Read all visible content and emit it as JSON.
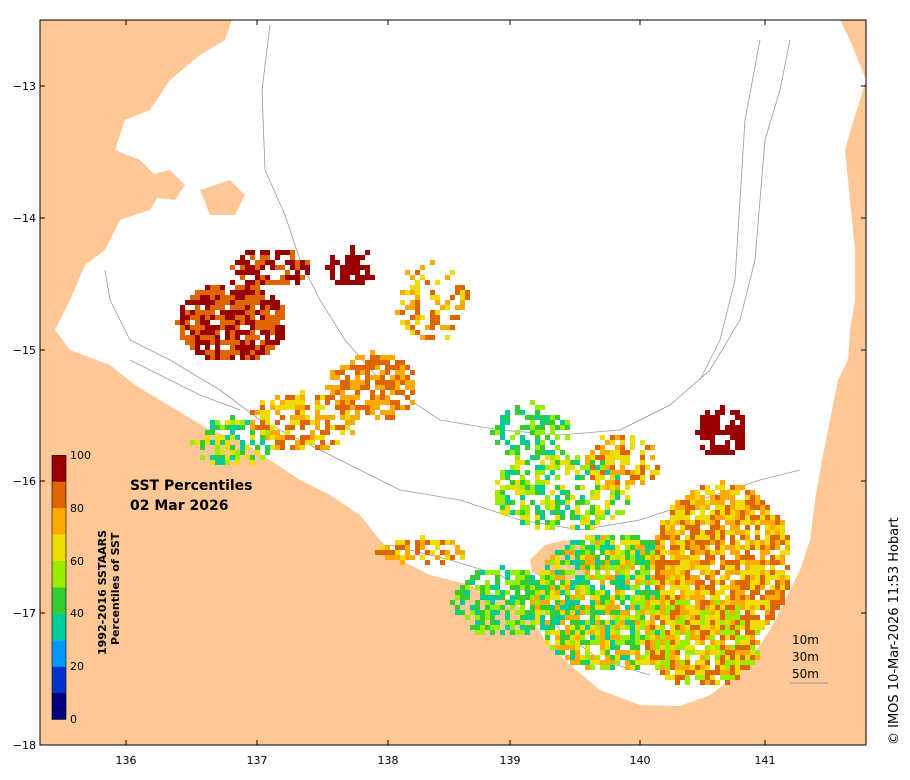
{
  "title": {
    "line1": "SST Percentiles",
    "line2": "02 Mar 2026"
  },
  "colorbar": {
    "title_line1": "1992-2016 SSTAARS",
    "title_line2": "Percentiles of SST",
    "ticks": [
      "0",
      "20",
      "40",
      "60",
      "80",
      "100"
    ],
    "colors": [
      "#000080",
      "#0033cc",
      "#0099ff",
      "#00cc99",
      "#33cc33",
      "#99ee00",
      "#eedd00",
      "#ffaa00",
      "#dd6600",
      "#990000"
    ]
  },
  "axes": {
    "x_ticks": [
      "136",
      "137",
      "138",
      "139",
      "140",
      "141"
    ],
    "y_ticks": [
      "−13",
      "−14",
      "−15",
      "−16",
      "−17",
      "−18"
    ]
  },
  "depth_legend": [
    "10m",
    "30m",
    "50m"
  ],
  "credit": "© IMOS 10-Mar-2026 11:53 Hobart",
  "colors": {
    "land": "#fdc896",
    "ocean": "#ffffff",
    "contour": "#9a9a9a"
  }
}
